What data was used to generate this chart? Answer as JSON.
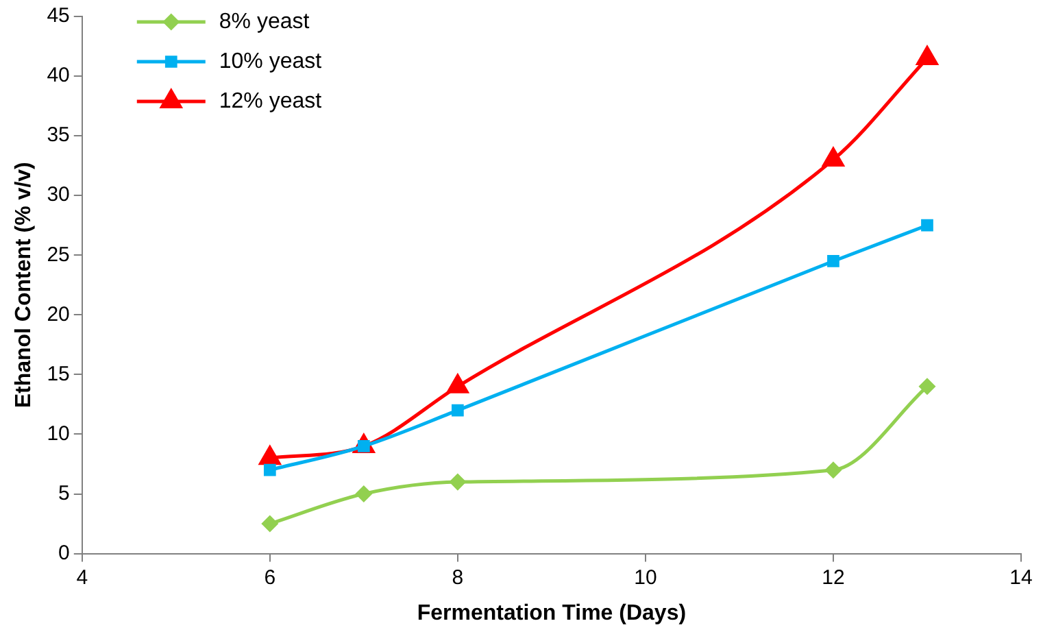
{
  "chart_data": {
    "type": "line",
    "xlabel": "Fermentation Time (Days)",
    "ylabel": "Ethanol Content (% v/v)",
    "x": [
      6,
      7,
      8,
      12,
      13
    ],
    "series": [
      {
        "name": "8% yeast",
        "color": "#92d050",
        "marker": "diamond",
        "values": [
          2.5,
          5,
          6,
          7,
          14
        ]
      },
      {
        "name": "10% yeast",
        "color": "#00b0f0",
        "marker": "square",
        "values": [
          7,
          9,
          12,
          24.5,
          27.5
        ]
      },
      {
        "name": "12% yeast",
        "color": "#ff0000",
        "marker": "triangle",
        "values": [
          8,
          9,
          14,
          33,
          41.5
        ]
      }
    ],
    "xlim": [
      4,
      14
    ],
    "xticks": [
      4,
      6,
      8,
      10,
      12,
      14
    ],
    "ylim": [
      0,
      45
    ],
    "yticks": [
      0,
      5,
      10,
      15,
      20,
      25,
      30,
      35,
      40,
      45
    ],
    "grid": false,
    "legend": "top left",
    "line_style": "solid"
  }
}
